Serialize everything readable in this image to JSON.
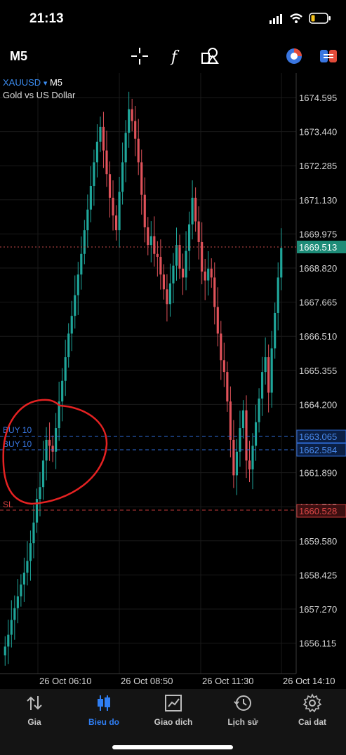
{
  "status_bar": {
    "time": "21:13"
  },
  "toolbar": {
    "timeframe": "M5",
    "icons": [
      "crosshair-icon",
      "function-icon",
      "objects-icon",
      "indicator-toggle-icon",
      "switch-icon"
    ]
  },
  "chart": {
    "symbol": "XAUUSD",
    "symbol_caret": "▾",
    "timeframe": "M5",
    "description": "Gold vs US Dollar",
    "price_ticks": [
      "1674.595",
      "1673.440",
      "1672.285",
      "1671.130",
      "1669.975",
      "1668.820",
      "1667.665",
      "1666.510",
      "1665.355",
      "1664.200",
      "1663.065",
      "1662.584",
      "1661.890",
      "1660.735",
      "1660.528",
      "1659.580",
      "1658.425",
      "1657.270",
      "1656.115"
    ],
    "time_ticks": [
      "26 Oct 06:10",
      "26 Oct 08:50",
      "26 Oct 11:30",
      "26 Oct 14:10"
    ],
    "current_price": "1669.513",
    "orders": [
      {
        "label": "BUY 10",
        "price": "1663.065"
      },
      {
        "label": "BUY 10",
        "price": "1662.584"
      }
    ],
    "stop_loss": {
      "label": "SL",
      "price": "1660.528"
    },
    "colors": {
      "up": "#1fa69a",
      "down": "#e0525a",
      "order": "#2e6bd8",
      "sl": "#c63a3a",
      "annotation": "#e02020"
    },
    "chart_data": {
      "type": "candlestick",
      "closes": [
        1656.0,
        1656.4,
        1656.9,
        1657.3,
        1657.7,
        1658.1,
        1658.5,
        1658.9,
        1659.5,
        1660.2,
        1661.0,
        1661.4,
        1662.3,
        1663.0,
        1662.8,
        1662.6,
        1663.4,
        1664.3,
        1665.0,
        1665.8,
        1666.6,
        1667.2,
        1667.9,
        1668.6,
        1669.3,
        1670.1,
        1670.8,
        1671.6,
        1672.4,
        1673.1,
        1673.6,
        1672.8,
        1672.0,
        1671.2,
        1670.6,
        1670.1,
        1671.4,
        1672.4,
        1673.4,
        1674.2,
        1673.8,
        1673.2,
        1672.4,
        1671.3,
        1670.2,
        1669.6,
        1669.9,
        1669.3,
        1669.2,
        1668.6,
        1668.1,
        1667.6,
        1668.3,
        1668.9,
        1669.6,
        1668.8,
        1668.5,
        1669.4,
        1670.3,
        1671.2,
        1670.4,
        1669.7,
        1668.7,
        1668.4,
        1668.8,
        1668.5,
        1667.5,
        1666.6,
        1665.7,
        1665.3,
        1664.3,
        1663.0,
        1661.8,
        1662.6,
        1663.4,
        1664.0,
        1662.3,
        1662.0,
        1662.8,
        1663.6,
        1664.4,
        1665.3,
        1665.8,
        1664.6,
        1666.1,
        1667.3,
        1668.5,
        1669.5
      ]
    }
  },
  "nav": {
    "items": [
      {
        "label": "Gia",
        "icon": "arrows-up-down-icon",
        "active": false
      },
      {
        "label": "Bieu do",
        "icon": "candlestick-icon",
        "active": true
      },
      {
        "label": "Giao dich",
        "icon": "trend-chart-icon",
        "active": false
      },
      {
        "label": "Lịch sử",
        "icon": "history-icon",
        "active": false
      },
      {
        "label": "Cai dat",
        "icon": "settings-gear-icon",
        "active": false
      }
    ]
  }
}
